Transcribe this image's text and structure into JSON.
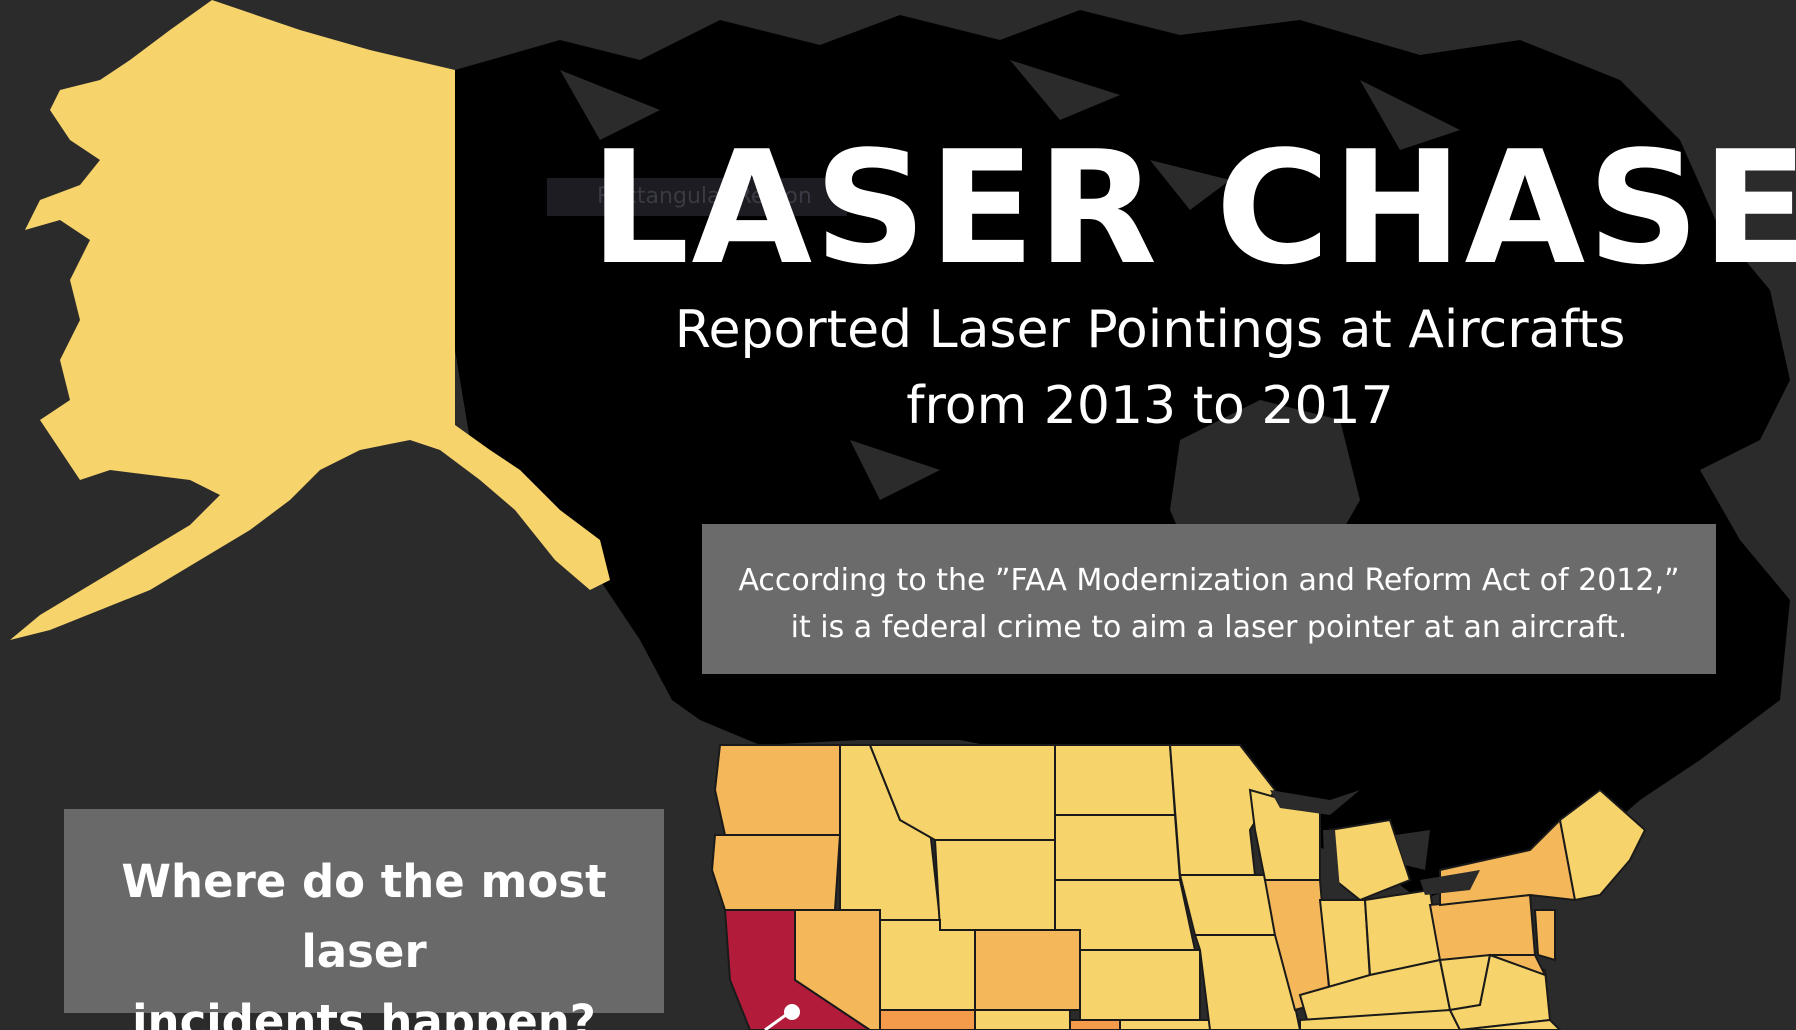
{
  "header": {
    "title": "LASER CHASER",
    "subtitle_line1": "Reported Laser Pointings at Aircrafts",
    "subtitle_line2": "from 2013 to 2017"
  },
  "ghost_label": "Rectangular Region",
  "info": {
    "line1": "According to the ”FAA Modernization and Reform Act of 2012,”",
    "line2": "it is a federal crime to aim a laser pointer at an aircraft."
  },
  "question": {
    "line1": "Where do the most laser",
    "line2": "incidents happen?"
  },
  "map": {
    "colors": {
      "ocean": "#2b2b2b",
      "land": "#000000",
      "low": "#f6d36b",
      "mid": "#f4b85a",
      "high": "#f49a4b",
      "top": "#b31b3b",
      "border": "#1a1a1a"
    },
    "callout_marker": "california-pin"
  }
}
